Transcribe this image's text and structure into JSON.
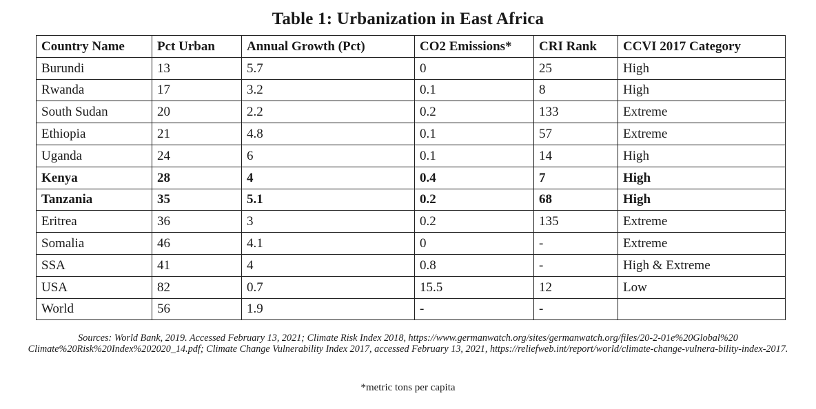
{
  "title": "Table 1: Urbanization in East Africa",
  "table": {
    "headers": [
      "Country Name",
      "Pct Urban",
      "Annual Growth (Pct)",
      "CO2 Emissions*",
      "CRI Rank",
      "CCVI 2017 Category"
    ],
    "rows": [
      {
        "cells": [
          "Burundi",
          "13",
          "5.7",
          "0",
          "25",
          "High"
        ],
        "bold": false
      },
      {
        "cells": [
          "Rwanda",
          "17",
          "3.2",
          "0.1",
          "8",
          "High"
        ],
        "bold": false
      },
      {
        "cells": [
          "South Sudan",
          "20",
          "2.2",
          "0.2",
          "133",
          "Extreme"
        ],
        "bold": false
      },
      {
        "cells": [
          "Ethiopia",
          "21",
          "4.8",
          "0.1",
          "57",
          "Extreme"
        ],
        "bold": false
      },
      {
        "cells": [
          "Uganda",
          "24",
          "6",
          "0.1",
          "14",
          "High"
        ],
        "bold": false
      },
      {
        "cells": [
          "Kenya",
          "28",
          "4",
          "0.4",
          "7",
          "High"
        ],
        "bold": true
      },
      {
        "cells": [
          "Tanzania",
          "35",
          "5.1",
          "0.2",
          "68",
          "High"
        ],
        "bold": true
      },
      {
        "cells": [
          "Eritrea",
          "36",
          "3",
          "0.2",
          "135",
          "Extreme"
        ],
        "bold": false
      },
      {
        "cells": [
          "Somalia",
          "46",
          "4.1",
          "0",
          "-",
          "Extreme"
        ],
        "bold": false
      },
      {
        "cells": [
          "SSA",
          "41",
          "4",
          "0.8",
          "-",
          "High & Extreme"
        ],
        "bold": false
      },
      {
        "cells": [
          "USA",
          "82",
          "0.7",
          "15.5",
          "12",
          "Low"
        ],
        "bold": false
      },
      {
        "cells": [
          "World",
          "56",
          "1.9",
          "-",
          "-",
          ""
        ],
        "bold": false
      }
    ]
  },
  "sources": "Sources: World Bank, 2019. Accessed February 13, 2021; Climate Risk Index 2018, https://www.germanwatch.org/sites/germanwatch.org/files/20-2-01e%20Global%20 Climate%20Risk%20Index%202020_14.pdf; Climate Change Vulnerability Index 2017, accessed February 13, 2021, https://reliefweb.int/report/world/climate-change-vulnera-bility-index-2017.",
  "footnote": "*metric tons per capita"
}
